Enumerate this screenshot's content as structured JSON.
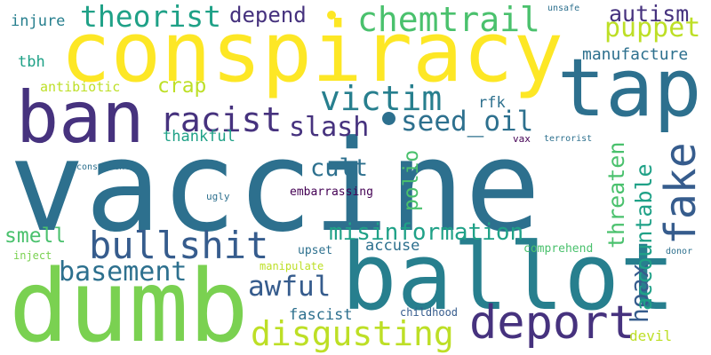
{
  "words": [
    {
      "id": "vaccine",
      "text": "vaccine",
      "color": "#2d708e"
    },
    {
      "id": "conspiracy",
      "text": "conspiracy",
      "color": "#fde725"
    },
    {
      "id": "ballot",
      "text": "ballot",
      "color": "#277f8e"
    },
    {
      "id": "dumb",
      "text": "dumb",
      "color": "#7ad151"
    },
    {
      "id": "ban",
      "text": "ban",
      "color": "#46327e"
    },
    {
      "id": "tap",
      "text": "tap",
      "color": "#2d708e"
    },
    {
      "id": "deport",
      "text": "deport",
      "color": "#46327e"
    },
    {
      "id": "bullshit",
      "text": "bullshit",
      "color": "#365c8d"
    },
    {
      "id": "chemtrail",
      "text": "chemtrail",
      "color": "#4ac16d"
    },
    {
      "id": "fake",
      "text": "fake",
      "color": "#365c8d"
    },
    {
      "id": "victim",
      "text": "victim",
      "color": "#277f8e"
    },
    {
      "id": "racist",
      "text": "racist",
      "color": "#46327e"
    },
    {
      "id": "theorist",
      "text": "theorist",
      "color": "#1fa187"
    },
    {
      "id": "disgusting",
      "text": "disgusting",
      "color": "#bddf26"
    },
    {
      "id": "seed_oil",
      "text": "seed_oil",
      "color": "#2d708e"
    },
    {
      "id": "misinformation",
      "text": "misinformation",
      "color": "#1fa187"
    },
    {
      "id": "basement",
      "text": "basement",
      "color": "#2d708e"
    },
    {
      "id": "awful",
      "text": "awful",
      "color": "#365c8d"
    },
    {
      "id": "hoax",
      "text": "hoax",
      "color": "#365c8d"
    },
    {
      "id": "cult",
      "text": "cult",
      "color": "#2d708e"
    },
    {
      "id": "slash",
      "text": "slash",
      "color": "#46327e"
    },
    {
      "id": "puppet",
      "text": "puppet",
      "color": "#bddf26"
    },
    {
      "id": "accountable",
      "text": "accountable",
      "color": "#1fa187"
    },
    {
      "id": "threaten",
      "text": "threaten",
      "color": "#4ac16d"
    },
    {
      "id": "autism",
      "text": "autism",
      "color": "#46327e"
    },
    {
      "id": "depend",
      "text": "depend",
      "color": "#46327e"
    },
    {
      "id": "smell",
      "text": "smell",
      "color": "#4ac16d"
    },
    {
      "id": "crap",
      "text": "crap",
      "color": "#bddf26"
    },
    {
      "id": "polio",
      "text": "polio",
      "color": "#4ac16d"
    },
    {
      "id": "manufacture",
      "text": "manufacture",
      "color": "#2d708e"
    },
    {
      "id": "fascist",
      "text": "fascist",
      "color": "#2d708e"
    },
    {
      "id": "accuse",
      "text": "accuse",
      "color": "#2d708e"
    },
    {
      "id": "thankful",
      "text": "thankful",
      "color": "#1fa187"
    },
    {
      "id": "antibiotic",
      "text": "antibiotic",
      "color": "#bddf26"
    },
    {
      "id": "injure",
      "text": "injure",
      "color": "#277f8e"
    },
    {
      "id": "tbh",
      "text": "tbh",
      "color": "#1fa187"
    },
    {
      "id": "rfk",
      "text": "rfk",
      "color": "#2d708e"
    },
    {
      "id": "devil",
      "text": "devil",
      "color": "#bddf26"
    },
    {
      "id": "embarrassing",
      "text": "embarrassing",
      "color": "#440154"
    },
    {
      "id": "comprehend",
      "text": "comprehend",
      "color": "#4ac16d"
    },
    {
      "id": "upset",
      "text": "upset",
      "color": "#2d708e"
    },
    {
      "id": "childhood",
      "text": "childhood",
      "color": "#365c8d"
    },
    {
      "id": "inject",
      "text": "inject",
      "color": "#7ad151"
    },
    {
      "id": "manipulate",
      "text": "manipulate",
      "color": "#bddf26"
    },
    {
      "id": "consequence",
      "text": "consequence",
      "color": "#2d708e"
    },
    {
      "id": "ugly",
      "text": "ugly",
      "color": "#2d708e"
    },
    {
      "id": "unsafe",
      "text": "unsafe",
      "color": "#2d708e"
    },
    {
      "id": "vax",
      "text": "vax",
      "color": "#440154"
    },
    {
      "id": "terrorist",
      "text": "terrorist",
      "color": "#2d708e"
    },
    {
      "id": "donor",
      "text": "donor",
      "color": "#2d708e"
    }
  ]
}
